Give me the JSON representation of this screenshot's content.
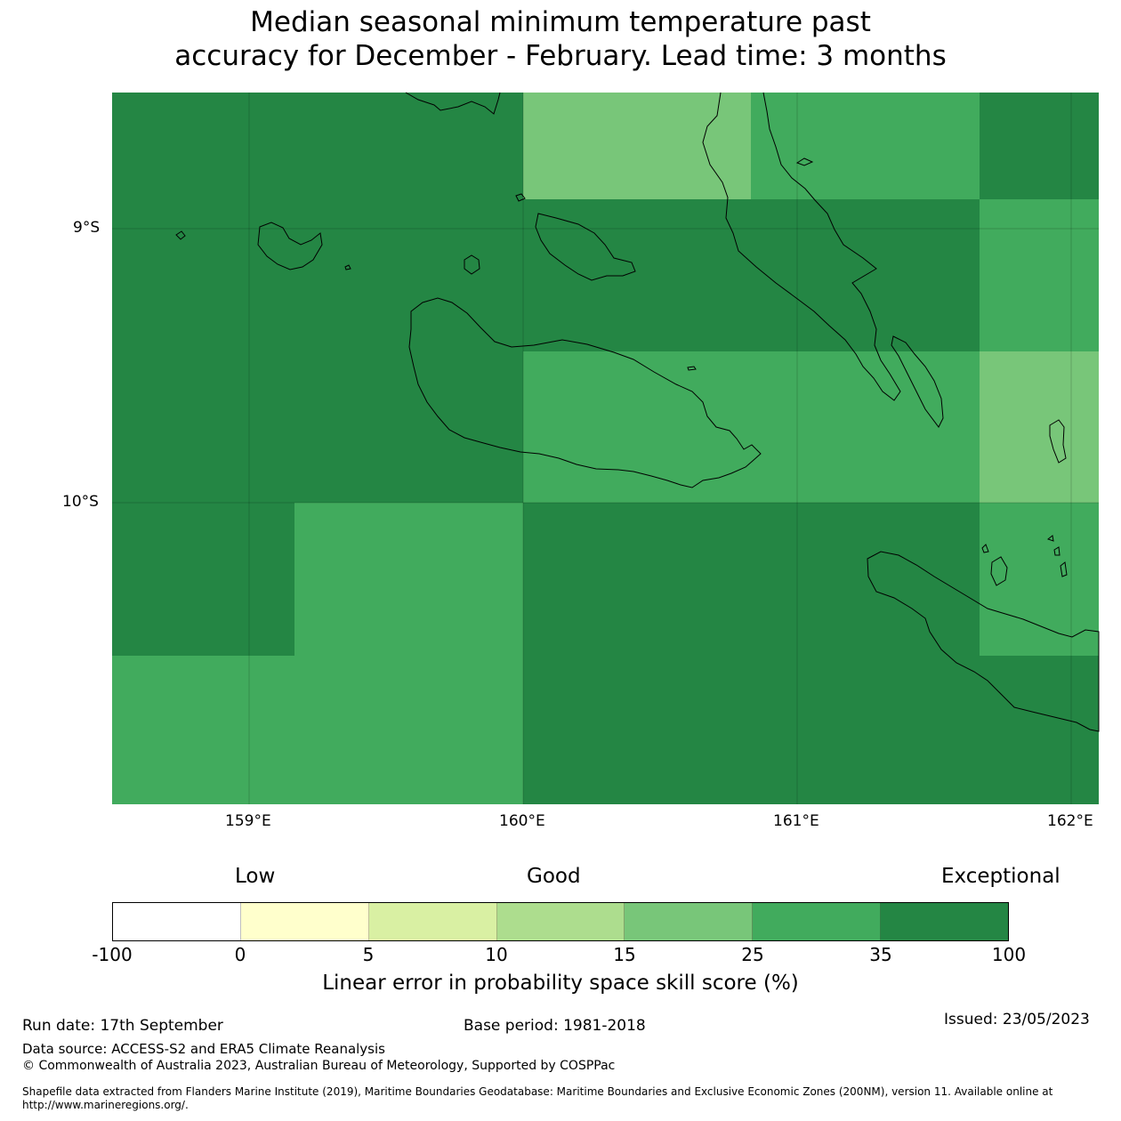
{
  "title": {
    "line1": "Median seasonal minimum temperature past",
    "line2": "accuracy for December - February. Lead time: 3 months"
  },
  "map": {
    "lat_labels": [
      "9°S",
      "10°S"
    ],
    "lon_labels": [
      "159°E",
      "160°E",
      "161°E",
      "162°E"
    ],
    "lon_range": [
      "158.5°E",
      "162.1°E"
    ],
    "lat_range": [
      "8.5°S",
      "11.1°S"
    ],
    "skill_colors": {
      "35-100": "#248644",
      "25-35": "#41ab5d",
      "15-25": "#78c679",
      "10-15": "#addd8e"
    }
  },
  "legend": {
    "low": "Low",
    "good": "Good",
    "exceptional": "Exceptional",
    "colors": [
      "#ffffff",
      "#ffffcc",
      "#d9f0a3",
      "#addd8e",
      "#78c679",
      "#41ab5d",
      "#248644"
    ],
    "ticks": [
      "-100",
      "0",
      "5",
      "10",
      "15",
      "25",
      "35",
      "100"
    ],
    "label": "Linear error in probability space skill score (%)"
  },
  "footer": {
    "run_date": "Run date: 17th September",
    "base_period": "Base period: 1981-2018",
    "issued": "Issued: 23/05/2023",
    "data_source": "Data source: ACCESS-S2 and ERA5 Climate Reanalysis",
    "copyright": "© Commonwealth of Australia 2023, Australian Bureau of Meteorology, Supported by COSPPac",
    "shapefile": "Shapefile data extracted from Flanders Marine Institute (2019), Maritime Boundaries Geodatabase: Maritime Boundaries and Exclusive Economic Zones (200NM), version 11. Available online at http://www.marineregions.org/."
  }
}
